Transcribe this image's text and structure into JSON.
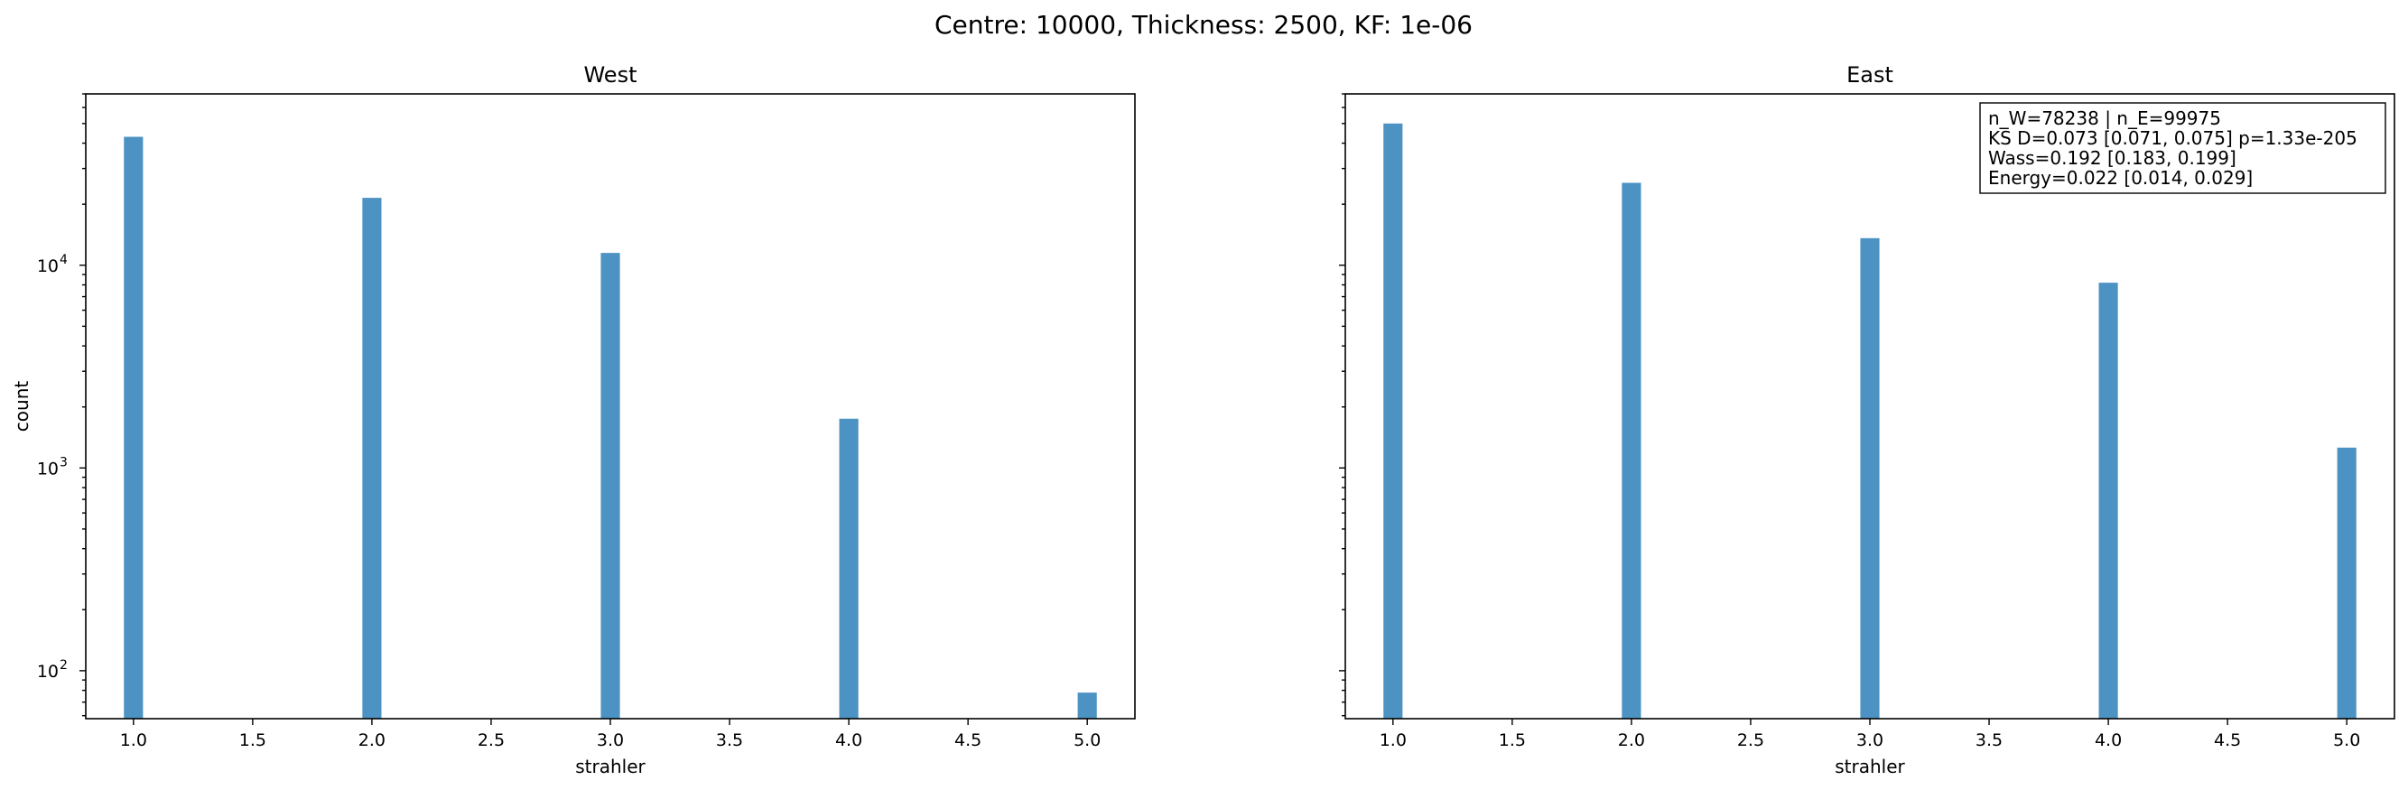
{
  "figure": {
    "suptitle": "Centre: 10000, Thickness: 2500, KF: 1e-06"
  },
  "chart_data": [
    {
      "type": "bar",
      "title": "West",
      "xlabel": "strahler",
      "ylabel": "count",
      "yscale": "log",
      "xlim": [
        0.8,
        5.2
      ],
      "ylim": [
        58,
        70000
      ],
      "xticks": [
        1.0,
        1.5,
        2.0,
        2.5,
        3.0,
        3.5,
        4.0,
        4.5,
        5.0
      ],
      "xtick_labels": [
        "1.0",
        "1.5",
        "2.0",
        "2.5",
        "3.0",
        "3.5",
        "4.0",
        "4.5",
        "5.0"
      ],
      "ytick_major": [
        {
          "base": "10",
          "exp": "2",
          "value": 100
        },
        {
          "base": "10",
          "exp": "3",
          "value": 1000
        },
        {
          "base": "10",
          "exp": "4",
          "value": 10000
        }
      ],
      "bar_width": 0.08,
      "x": [
        1,
        2,
        3,
        4,
        5
      ],
      "values": [
        43000,
        21500,
        11500,
        1750,
        78
      ],
      "color": "#1f77b4",
      "annotation": []
    },
    {
      "type": "bar",
      "title": "East",
      "xlabel": "strahler",
      "ylabel": "",
      "yscale": "log",
      "xlim": [
        0.8,
        5.2
      ],
      "ylim": [
        58,
        70000
      ],
      "xticks": [
        1.0,
        1.5,
        2.0,
        2.5,
        3.0,
        3.5,
        4.0,
        4.5,
        5.0
      ],
      "xtick_labels": [
        "1.0",
        "1.5",
        "2.0",
        "2.5",
        "3.0",
        "3.5",
        "4.0",
        "4.5",
        "5.0"
      ],
      "ytick_major": [],
      "bar_width": 0.08,
      "x": [
        1,
        2,
        3,
        4,
        5
      ],
      "values": [
        50000,
        25500,
        13600,
        8200,
        1260
      ],
      "color": "#1f77b4",
      "annotation": [
        "n_W=78238 | n_E=99975",
        "KS D=0.073 [0.071, 0.075]  p=1.33e-205",
        "Wass=0.192 [0.183, 0.199]",
        "Energy=0.022 [0.014, 0.029]"
      ]
    }
  ]
}
